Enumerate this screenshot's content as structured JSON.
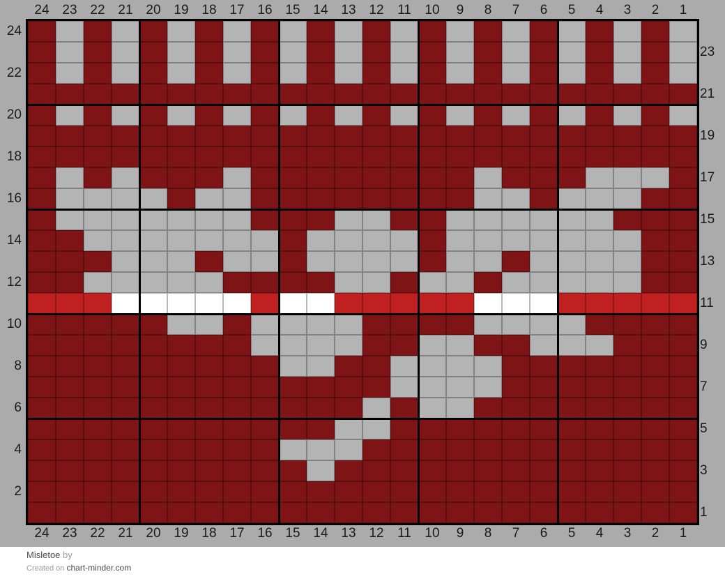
{
  "page": {
    "background": "#ffffff",
    "chart_background": "#ABABAB",
    "label_color": "#1a1a1a"
  },
  "axes": {
    "top": [
      "24",
      "23",
      "22",
      "21",
      "20",
      "19",
      "18",
      "17",
      "16",
      "15",
      "14",
      "13",
      "12",
      "11",
      "10",
      "9",
      "8",
      "7",
      "6",
      "5",
      "4",
      "3",
      "2",
      "1"
    ],
    "bottom": [
      "24",
      "23",
      "22",
      "21",
      "20",
      "19",
      "18",
      "17",
      "16",
      "15",
      "14",
      "13",
      "12",
      "11",
      "10",
      "9",
      "8",
      "7",
      "6",
      "5",
      "4",
      "3",
      "2",
      "1"
    ],
    "left": [
      "24",
      "22",
      "20",
      "18",
      "16",
      "14",
      "12",
      "10",
      "8",
      "6",
      "4",
      "2"
    ],
    "right": [
      "23",
      "21",
      "19",
      "17",
      "15",
      "13",
      "11",
      "9",
      "7",
      "5",
      "3",
      "1"
    ]
  },
  "footer": {
    "title": "Misletoe",
    "byline": "by",
    "created_prefix": "Created on",
    "site": "chart-minder.com"
  },
  "chart_data": {
    "type": "heatmap",
    "title": "Misletoe",
    "description": "24x24 stranded colorwork knitting chart; columns numbered 24 to 1 left-to-right, rows numbered 24 (top) to 1 (bottom); bold grid rule every 5 cells from bottom-right",
    "columns": 24,
    "rows_count": 24,
    "cell_size": {
      "width": 40,
      "height": 30
    },
    "palette": {
      "R": "#7E1415",
      "G": "#B4B4B4",
      "B": "#C02020",
      "W": "#FFFFFF"
    },
    "palette_names": {
      "R": "dark-red",
      "G": "gray",
      "B": "bright-red",
      "W": "white"
    },
    "grid_lines": {
      "thin": "rgba(0,0,0,0.28)",
      "thick": "#000000",
      "bold_every": 5
    },
    "rows": [
      {
        "row": 24,
        "cells": "RGRGRGRGRGRGRGRGRGRGRGRG"
      },
      {
        "row": 23,
        "cells": "RGRGRGRGRGRGRGRGRGRGRGRG"
      },
      {
        "row": 22,
        "cells": "RGRGRGRGRGRGRGRGRGRGRGRG"
      },
      {
        "row": 21,
        "cells": "RRRRRRRRRRRRRRRRRRRRRRRR"
      },
      {
        "row": 20,
        "cells": "RGRGRGRGRGRGRGRGRGRGRGRG"
      },
      {
        "row": 19,
        "cells": "RRRRRRRRRRRRRRRRRRRRRRRR"
      },
      {
        "row": 18,
        "cells": "RRRRRRRRRRRRRRRRRRRRRRRR"
      },
      {
        "row": 17,
        "cells": "RGRGRRRGRRRRRRRRGRRRGGGR"
      },
      {
        "row": 16,
        "cells": "RGGGGRGGRRRRRRRRGGRGGGRR"
      },
      {
        "row": 15,
        "cells": "RGGGGGGGRRRGGRRGGGGGGRRR"
      },
      {
        "row": 14,
        "cells": "RRGGGGGGGRGGGGRGGGGGGGRR"
      },
      {
        "row": 13,
        "cells": "RRRGGGRGGRGGGGRGGRGGGGRR"
      },
      {
        "row": 12,
        "cells": "RRGGGGGRRRRGGRGGRGGGGGRR"
      },
      {
        "row": 11,
        "cells": "BBBWWWWWBWWBBBBBWWWBBBBB"
      },
      {
        "row": 10,
        "cells": "RRRRRGGRGGGGRRRRGGGGRRRR"
      },
      {
        "row": 9,
        "cells": "RRRRRRRRGGGGRRGGRRGGGRRR"
      },
      {
        "row": 8,
        "cells": "RRRRRRRRRGGRRGGGGRRRRRRR"
      },
      {
        "row": 7,
        "cells": "RRRRRRRRRRRRRGGGGRRRRRRR"
      },
      {
        "row": 6,
        "cells": "RRRRRRRRRRRRGRGGRRRRRRRR"
      },
      {
        "row": 5,
        "cells": "RRRRRRRRRRRGGRRRRRRRRRRR"
      },
      {
        "row": 4,
        "cells": "RRRRRRRRRGGGRRRRRRRRRRRR"
      },
      {
        "row": 3,
        "cells": "RRRRRRRRRRGRRRRRRRRRRRRR"
      },
      {
        "row": 2,
        "cells": "RRRRRRRRRRRRRRRRRRRRRRRR"
      },
      {
        "row": 1,
        "cells": "RRRRRRRRRRRRRRRRRRRRRRRR"
      }
    ]
  }
}
